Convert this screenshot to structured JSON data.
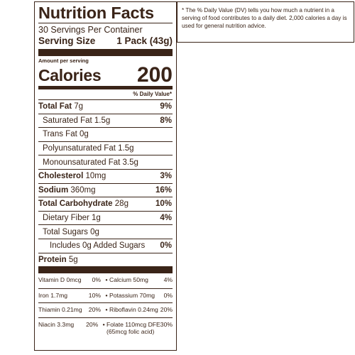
{
  "label": {
    "title": "Nutrition Facts",
    "servings_per_container": "30 Servings Per Container",
    "serving_size_label": "Serving Size",
    "serving_size_value": "1 Pack (43g)",
    "amount_per_serving": "Amount per serving",
    "calories_label": "Calories",
    "calories_value": "200",
    "dv_header": "% Daily Value*",
    "nutrients": [
      {
        "bold": "Total Fat",
        "amount": " 7g",
        "dv": "9%",
        "indent": 0
      },
      {
        "bold": "",
        "amount": "Saturated Fat 1.5g",
        "dv": "8%",
        "indent": 1
      },
      {
        "bold": "",
        "amount": "Trans Fat 0g",
        "dv": "",
        "indent": 1
      },
      {
        "bold": "",
        "amount": "Polyunsaturated Fat 1.5g",
        "dv": "",
        "indent": 1
      },
      {
        "bold": "",
        "amount": "Monounsaturated Fat 3.5g",
        "dv": "",
        "indent": 1
      },
      {
        "bold": "Cholesterol",
        "amount": " 10mg",
        "dv": "3%",
        "indent": 0
      },
      {
        "bold": "Sodium",
        "amount": " 360mg",
        "dv": "16%",
        "indent": 0
      },
      {
        "bold": "Total Carbohydrate",
        "amount": " 28g",
        "dv": "10%",
        "indent": 0
      },
      {
        "bold": "",
        "amount": "Dietary Fiber 1g",
        "dv": "4%",
        "indent": 1
      },
      {
        "bold": "",
        "amount": "Total Sugars 0g",
        "dv": "",
        "indent": 1
      },
      {
        "bold": "",
        "amount": "Includes 0g Added Sugars",
        "dv": "0%",
        "indent": 2
      },
      {
        "bold": "Protein",
        "amount": " 5g",
        "dv": "",
        "indent": 0
      }
    ],
    "vitamins": [
      {
        "left_name": "Vitamin D 0mcg",
        "left_dv": "0%",
        "right_name": "Calcium 50mg",
        "right_dv": "4%",
        "right_extra": ""
      },
      {
        "left_name": "Iron 1.7mg",
        "left_dv": "10%",
        "right_name": "Potassium 70mg",
        "right_dv": "0%",
        "right_extra": ""
      },
      {
        "left_name": "Thiamin 0.21mg",
        "left_dv": "20%",
        "right_name": "Riboflavin 0.24mg",
        "right_dv": "20%",
        "right_extra": ""
      },
      {
        "left_name": "Niacin 3.3mg",
        "left_dv": "20%",
        "right_name": "Folate 110mcg DFE",
        "right_dv": "30%",
        "right_extra": "(65mcg folic acid)"
      }
    ],
    "bullet": "•"
  },
  "footnote": "* The % Daily Value (DV) tells you how much a nutrient in a serving of food contributes to a daily diet. 2,000 calories a day is used for general nutrition advice."
}
